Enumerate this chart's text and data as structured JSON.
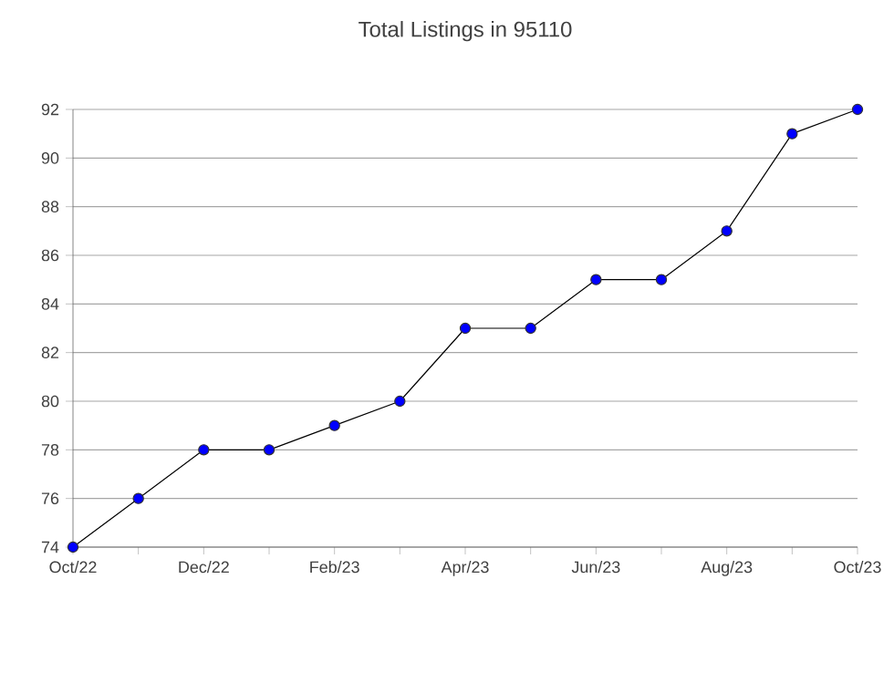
{
  "chart_data": {
    "type": "line",
    "title": "Total Listings in 95110",
    "categories": [
      "Oct/22",
      null,
      "Dec/22",
      null,
      "Feb/23",
      null,
      "Apr/23",
      null,
      "Jun/23",
      null,
      "Aug/23",
      null,
      "Oct/23"
    ],
    "series": [
      {
        "color": "#0000ff",
        "values": [
          74,
          76,
          78,
          78,
          79,
          80,
          83,
          83,
          85,
          85,
          87,
          91,
          92
        ]
      }
    ],
    "ylim": [
      74,
      92
    ],
    "yticks": [
      74,
      76,
      78,
      80,
      82,
      84,
      86,
      88,
      90,
      92
    ],
    "grid": "y",
    "marker": "circle",
    "line_style": "solid"
  }
}
